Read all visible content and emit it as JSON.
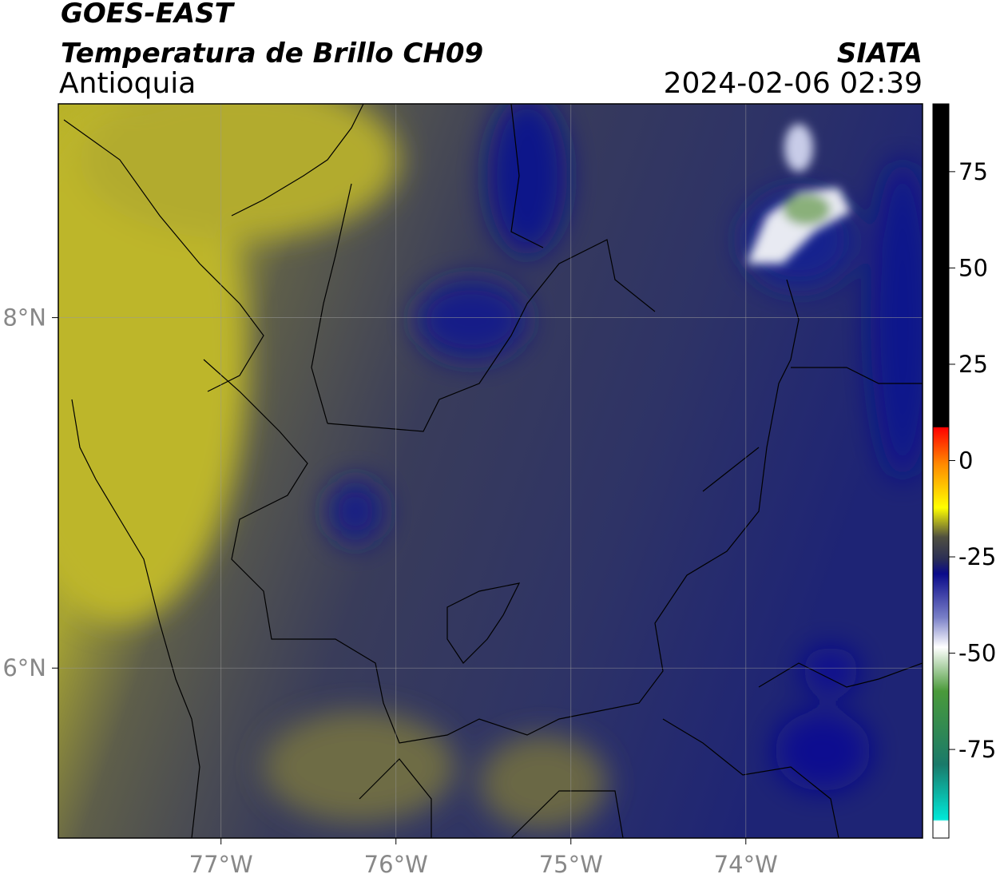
{
  "header": {
    "title": "GOES-EAST",
    "subtitle": "Temperatura de Brillo CH09",
    "region": "Antioquia",
    "source": "SIATA",
    "datetime": "2024-02-06 02:39"
  },
  "map": {
    "xlim": [
      -77.93,
      -72.99
    ],
    "ylim": [
      5.03,
      9.22
    ],
    "xticks": [
      {
        "value": -77,
        "label": "77°W"
      },
      {
        "value": -76,
        "label": "76°W"
      },
      {
        "value": -75,
        "label": "75°W"
      },
      {
        "value": -74,
        "label": "74°W"
      }
    ],
    "yticks": [
      {
        "value": 8,
        "label": "8°N"
      },
      {
        "value": 6,
        "label": "6°N"
      }
    ],
    "grid": true
  },
  "colorbar": {
    "lim": [
      -98,
      92.6
    ],
    "ticks": [
      75,
      50,
      25,
      0,
      -25,
      -50,
      -75
    ]
  }
}
